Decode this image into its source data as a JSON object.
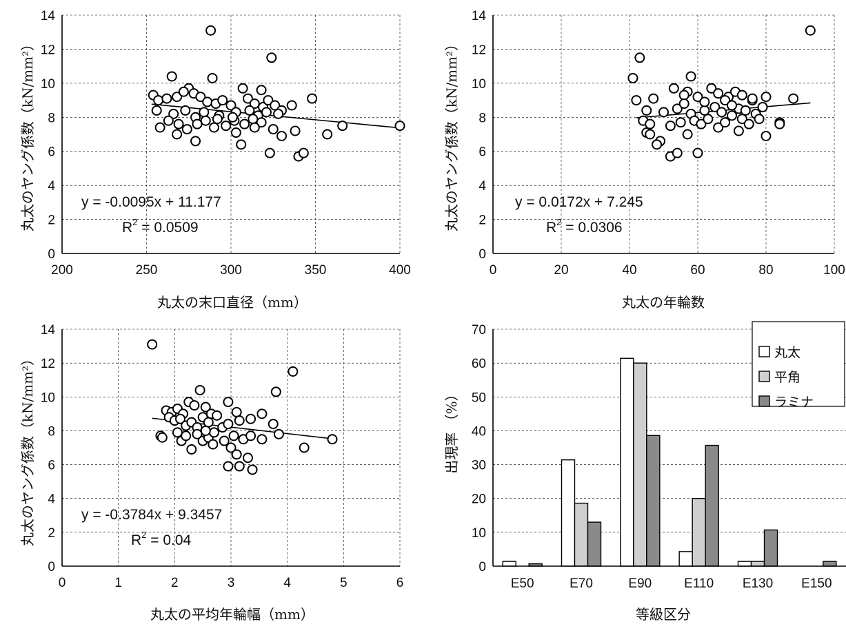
{
  "chart_data": [
    {
      "type": "scatter",
      "xlabel": "丸太の末口直径（mm）",
      "ylabel": "丸太のヤング係数（kN/mm²）",
      "xlim": [
        200,
        400
      ],
      "ylim": [
        0,
        14
      ],
      "xticks": [
        "200",
        "250",
        "300",
        "350",
        "400"
      ],
      "yticks": [
        "0",
        "2",
        "4",
        "6",
        "8",
        "10",
        "12",
        "14"
      ],
      "grid": true,
      "equation": "y = -0.0095x + 11.177",
      "r2_prefix": "R",
      "r2_sup": "2",
      "r2_value": " = 0.0509",
      "trendline": {
        "slope": -0.0095,
        "intercept": 11.177,
        "x_range": [
          253,
          400
        ]
      },
      "points": [
        [
          288,
          13.1
        ],
        [
          324,
          11.5
        ],
        [
          265,
          10.4
        ],
        [
          289,
          10.3
        ],
        [
          307,
          9.7
        ],
        [
          318,
          9.6
        ],
        [
          275,
          9.7
        ],
        [
          254,
          9.3
        ],
        [
          257,
          9.0
        ],
        [
          262,
          9.1
        ],
        [
          268,
          9.2
        ],
        [
          272,
          9.5
        ],
        [
          278,
          9.4
        ],
        [
          282,
          9.2
        ],
        [
          286,
          8.9
        ],
        [
          291,
          8.8
        ],
        [
          295,
          9.0
        ],
        [
          300,
          8.7
        ],
        [
          310,
          9.1
        ],
        [
          314,
          8.8
        ],
        [
          319,
          8.6
        ],
        [
          322,
          9.0
        ],
        [
          326,
          8.7
        ],
        [
          330,
          8.4
        ],
        [
          336,
          8.7
        ],
        [
          348,
          9.1
        ],
        [
          256,
          8.4
        ],
        [
          266,
          8.2
        ],
        [
          273,
          8.4
        ],
        [
          279,
          8.0
        ],
        [
          284,
          8.3
        ],
        [
          293,
          8.1
        ],
        [
          303,
          8.3
        ],
        [
          311,
          8.4
        ],
        [
          316,
          8.1
        ],
        [
          321,
          8.3
        ],
        [
          328,
          8.2
        ],
        [
          258,
          7.4
        ],
        [
          263,
          7.8
        ],
        [
          269,
          7.6
        ],
        [
          274,
          7.3
        ],
        [
          280,
          7.6
        ],
        [
          285,
          7.8
        ],
        [
          290,
          7.4
        ],
        [
          297,
          7.5
        ],
        [
          302,
          7.8
        ],
        [
          308,
          7.6
        ],
        [
          313,
          7.9
        ],
        [
          318,
          7.7
        ],
        [
          325,
          7.3
        ],
        [
          338,
          7.2
        ],
        [
          366,
          7.5
        ],
        [
          400,
          7.5
        ],
        [
          268,
          7.0
        ],
        [
          303,
          7.1
        ],
        [
          357,
          7.0
        ],
        [
          279,
          6.6
        ],
        [
          306,
          6.4
        ],
        [
          330,
          6.9
        ],
        [
          323,
          5.9
        ],
        [
          340,
          5.7
        ],
        [
          343,
          5.9
        ],
        [
          292,
          7.9
        ],
        [
          301,
          8.0
        ],
        [
          314,
          7.4
        ]
      ]
    },
    {
      "type": "scatter",
      "xlabel": "丸太の年輪数",
      "ylabel": "丸太のヤング係数（kN/mm²）",
      "xlim": [
        0,
        100
      ],
      "ylim": [
        0,
        14
      ],
      "xticks": [
        "0",
        "20",
        "40",
        "60",
        "80",
        "100"
      ],
      "yticks": [
        "0",
        "2",
        "4",
        "6",
        "8",
        "10",
        "12",
        "14"
      ],
      "grid": true,
      "equation": "y = 0.0172x + 7.245",
      "r2_prefix": "R",
      "r2_sup": "2",
      "r2_value": " = 0.0306",
      "trendline": {
        "slope": 0.0172,
        "intercept": 7.245,
        "x_range": [
          42,
          93
        ]
      },
      "points": [
        [
          93,
          13.1
        ],
        [
          43,
          11.5
        ],
        [
          41,
          10.3
        ],
        [
          58,
          10.4
        ],
        [
          42,
          9.0
        ],
        [
          47,
          9.1
        ],
        [
          53,
          9.7
        ],
        [
          57,
          9.5
        ],
        [
          56,
          9.3
        ],
        [
          60,
          9.2
        ],
        [
          64,
          9.7
        ],
        [
          66,
          9.4
        ],
        [
          69,
          9.2
        ],
        [
          71,
          9.5
        ],
        [
          73,
          9.3
        ],
        [
          76,
          9.0
        ],
        [
          80,
          9.2
        ],
        [
          88,
          9.1
        ],
        [
          45,
          8.4
        ],
        [
          50,
          8.3
        ],
        [
          54,
          8.5
        ],
        [
          58,
          8.2
        ],
        [
          62,
          8.4
        ],
        [
          65,
          8.6
        ],
        [
          67,
          8.3
        ],
        [
          70,
          8.1
        ],
        [
          72,
          8.5
        ],
        [
          74,
          8.4
        ],
        [
          77,
          8.2
        ],
        [
          79,
          8.6
        ],
        [
          44,
          7.8
        ],
        [
          46,
          7.6
        ],
        [
          52,
          7.5
        ],
        [
          55,
          7.7
        ],
        [
          59,
          7.8
        ],
        [
          61,
          7.6
        ],
        [
          63,
          7.9
        ],
        [
          66,
          7.4
        ],
        [
          68,
          7.7
        ],
        [
          73,
          7.9
        ],
        [
          75,
          7.6
        ],
        [
          78,
          7.9
        ],
        [
          84,
          7.7
        ],
        [
          45,
          7.1
        ],
        [
          46,
          7.0
        ],
        [
          49,
          6.6
        ],
        [
          48,
          6.4
        ],
        [
          57,
          7.0
        ],
        [
          72,
          7.2
        ],
        [
          80,
          6.9
        ],
        [
          52,
          5.7
        ],
        [
          54,
          5.9
        ],
        [
          60,
          5.9
        ],
        [
          56,
          8.8
        ],
        [
          62,
          8.9
        ],
        [
          68,
          9.0
        ],
        [
          70,
          8.7
        ],
        [
          76,
          9.1
        ],
        [
          84,
          7.6
        ]
      ]
    },
    {
      "type": "scatter",
      "xlabel": "丸太の平均年輪幅（mm）",
      "ylabel": "丸太のヤング係数（kN/mm²）",
      "xlim": [
        0,
        6
      ],
      "ylim": [
        0,
        14
      ],
      "xticks": [
        "0",
        "1",
        "2",
        "3",
        "4",
        "5",
        "6"
      ],
      "yticks": [
        "0",
        "2",
        "4",
        "6",
        "8",
        "10",
        "12",
        "14"
      ],
      "grid": true,
      "equation": "y = -0.3784x + 9.3457",
      "r2_prefix": "R",
      "r2_sup": "2",
      "r2_value": " = 0.04",
      "trendline": {
        "slope": -0.3784,
        "intercept": 9.3457,
        "x_range": [
          1.6,
          4.8
        ]
      },
      "points": [
        [
          1.6,
          13.1
        ],
        [
          4.1,
          11.5
        ],
        [
          3.8,
          10.3
        ],
        [
          2.45,
          10.4
        ],
        [
          2.95,
          9.7
        ],
        [
          1.85,
          9.2
        ],
        [
          1.95,
          9.1
        ],
        [
          2.05,
          9.3
        ],
        [
          2.15,
          9.0
        ],
        [
          2.25,
          9.7
        ],
        [
          2.35,
          9.5
        ],
        [
          2.55,
          9.4
        ],
        [
          2.65,
          9.0
        ],
        [
          2.75,
          8.9
        ],
        [
          3.1,
          9.1
        ],
        [
          3.55,
          9.0
        ],
        [
          1.9,
          8.8
        ],
        [
          2.0,
          8.6
        ],
        [
          2.1,
          8.7
        ],
        [
          2.2,
          8.3
        ],
        [
          2.3,
          8.5
        ],
        [
          2.4,
          8.2
        ],
        [
          2.5,
          8.8
        ],
        [
          2.6,
          8.5
        ],
        [
          2.85,
          8.2
        ],
        [
          2.95,
          8.4
        ],
        [
          3.15,
          8.6
        ],
        [
          3.35,
          8.7
        ],
        [
          3.75,
          8.4
        ],
        [
          1.75,
          7.7
        ],
        [
          1.78,
          7.6
        ],
        [
          2.05,
          7.9
        ],
        [
          2.12,
          7.4
        ],
        [
          2.2,
          7.7
        ],
        [
          2.4,
          7.8
        ],
        [
          2.5,
          7.4
        ],
        [
          2.6,
          7.6
        ],
        [
          2.7,
          7.9
        ],
        [
          2.88,
          7.4
        ],
        [
          3.05,
          7.7
        ],
        [
          3.22,
          7.5
        ],
        [
          3.35,
          7.7
        ],
        [
          3.55,
          7.5
        ],
        [
          3.85,
          7.8
        ],
        [
          4.8,
          7.5
        ],
        [
          2.3,
          6.9
        ],
        [
          3.0,
          7.0
        ],
        [
          4.3,
          7.0
        ],
        [
          3.1,
          6.6
        ],
        [
          3.3,
          6.4
        ],
        [
          2.95,
          5.9
        ],
        [
          3.15,
          5.9
        ],
        [
          3.38,
          5.7
        ],
        [
          2.55,
          8.0
        ],
        [
          2.68,
          7.2
        ]
      ]
    },
    {
      "type": "bar",
      "xlabel": "等級区分",
      "ylabel": "出現率 （%）",
      "categories": [
        "E50",
        "E70",
        "E90",
        "E110",
        "E130",
        "E150"
      ],
      "ylim": [
        0,
        70
      ],
      "yticks": [
        "0",
        "10",
        "20",
        "30",
        "40",
        "50",
        "60",
        "70"
      ],
      "grid": true,
      "legend_position": "top-right",
      "series": [
        {
          "name": "丸太",
          "color": "#ffffff",
          "values": [
            1.4,
            31.4,
            61.4,
            4.3,
            1.4,
            0
          ]
        },
        {
          "name": "平角",
          "color": "#cfcfcf",
          "values": [
            0,
            18.6,
            60.0,
            20.0,
            1.4,
            0
          ]
        },
        {
          "name": "ラミナ",
          "color": "#8a8a8a",
          "values": [
            0.7,
            13.0,
            38.6,
            35.7,
            10.7,
            1.4
          ]
        }
      ]
    }
  ]
}
